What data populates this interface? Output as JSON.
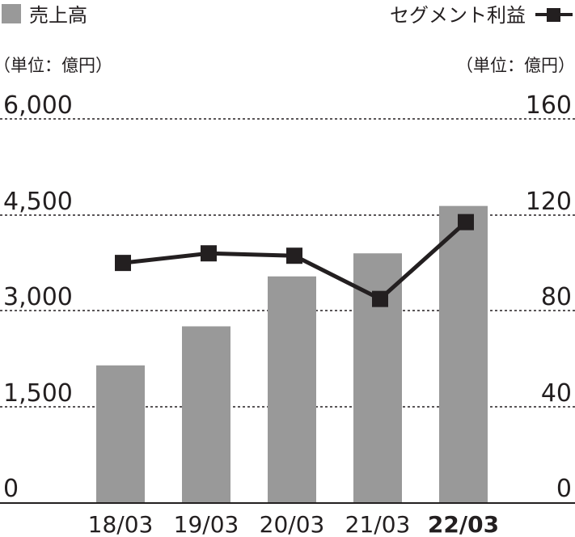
{
  "chart_data": {
    "type": "bar+line",
    "categories": [
      "18/03",
      "19/03",
      "20/03",
      "21/03",
      "22/03"
    ],
    "highlight_category": "22/03",
    "bar_series": {
      "name": "売上高",
      "color": "#999999",
      "values": [
        2150,
        2760,
        3540,
        3900,
        4640
      ]
    },
    "line_series": {
      "name": "セグメント利益",
      "color": "#231f20",
      "values": [
        100,
        104,
        103,
        85,
        117
      ]
    },
    "left_axis": {
      "unit": "（単位：億円）",
      "ylim": [
        0,
        6000
      ],
      "ticks": [
        "0",
        "1,500",
        "3,000",
        "4,500",
        "6,000"
      ]
    },
    "right_axis": {
      "unit": "（単位：億円）",
      "ylim": [
        0,
        160
      ],
      "ticks": [
        "0",
        "40",
        "80",
        "120",
        "160"
      ]
    },
    "grid": "dotted-horizontal",
    "legend_placement": "top"
  }
}
